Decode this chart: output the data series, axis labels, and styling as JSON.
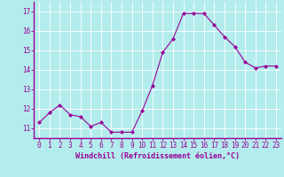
{
  "x": [
    0,
    1,
    2,
    3,
    4,
    5,
    6,
    7,
    8,
    9,
    10,
    11,
    12,
    13,
    14,
    15,
    16,
    17,
    18,
    19,
    20,
    21,
    22,
    23
  ],
  "y": [
    11.3,
    11.8,
    12.2,
    11.7,
    11.6,
    11.1,
    11.3,
    10.8,
    10.8,
    10.8,
    11.9,
    13.2,
    14.9,
    15.6,
    16.9,
    16.9,
    16.9,
    16.3,
    15.7,
    15.2,
    14.4,
    14.1,
    14.2,
    14.2
  ],
  "line_color": "#990099",
  "marker": "D",
  "marker_size": 2.0,
  "bg_color": "#b3ecec",
  "grid_color": "#ffffff",
  "ylabel_values": [
    11,
    12,
    13,
    14,
    15,
    16,
    17
  ],
  "ylim": [
    10.5,
    17.5
  ],
  "xlim": [
    -0.5,
    23.5
  ],
  "xlabel": "Windchill (Refroidissement éolien,°C)",
  "xlabel_fontsize": 6.0,
  "tick_fontsize": 5.5,
  "title": ""
}
